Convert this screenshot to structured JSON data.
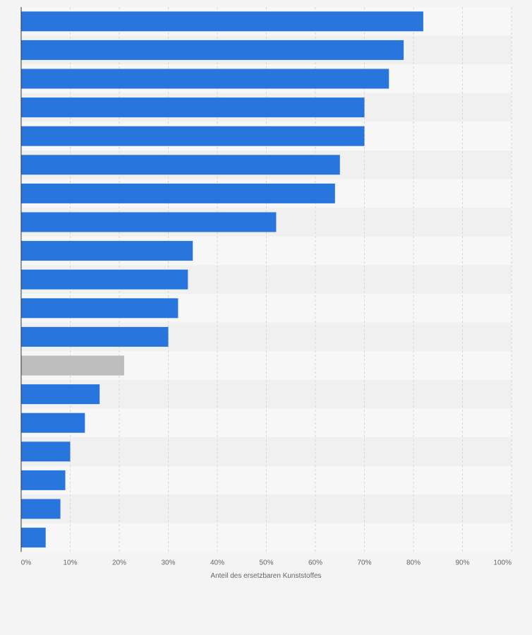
{
  "chart_data": {
    "type": "bar",
    "orientation": "horizontal",
    "xlabel": "Anteil des ersetzbaren Kunststoffes",
    "xlim": [
      0,
      100
    ],
    "x_ticks": [
      "0%",
      "10%",
      "20%",
      "30%",
      "40%",
      "50%",
      "60%",
      "70%",
      "80%",
      "90%",
      "100%"
    ],
    "values": [
      82,
      78,
      75,
      70,
      70,
      65,
      64,
      52,
      35,
      34,
      32,
      30,
      21,
      16,
      13,
      10,
      9,
      8,
      5
    ],
    "highlight_index": 12,
    "grid": true,
    "colors": {
      "bar": "#2876dd",
      "bar_highlight": "#bdbdbd",
      "band_light": "#f7f7f7",
      "band_dark": "#f0f0f0",
      "grid": "#d6d6d6",
      "axis": "#333333"
    }
  }
}
